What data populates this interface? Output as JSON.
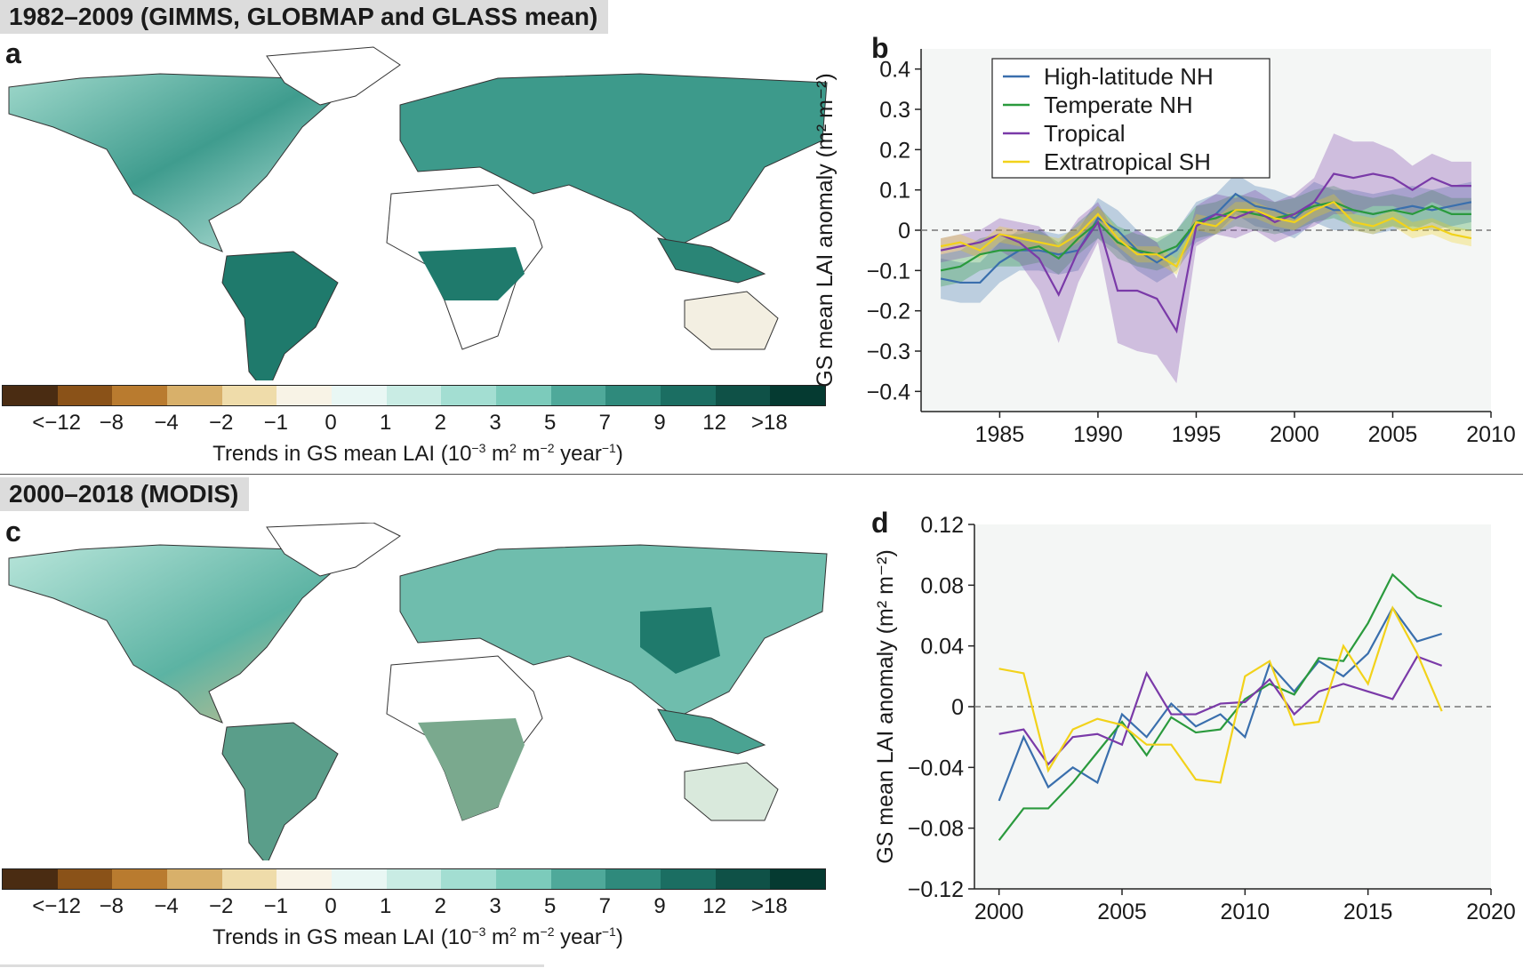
{
  "sections": {
    "top_title": "1982–2009 (GIMMS, GLOBMAP and GLASS mean)",
    "bottom_title": "2000–2018 (MODIS)"
  },
  "panels": {
    "a": "a",
    "b": "b",
    "c": "c",
    "d": "d"
  },
  "colorbar": {
    "colors": [
      "#4a2c12",
      "#8a5218",
      "#b97b2f",
      "#d8b06a",
      "#efdcaa",
      "#f8f3e6",
      "#e9f7f4",
      "#c9ece4",
      "#a3ded2",
      "#7ccbbb",
      "#4fa99a",
      "#2f8a7c",
      "#1b6e62",
      "#0f5147",
      "#053a31"
    ],
    "ticks": [
      "<−12",
      "−8",
      "−4",
      "−2",
      "−1",
      "0",
      "1",
      "2",
      "3",
      "5",
      "7",
      "9",
      "12",
      ">18"
    ],
    "label_prefix": "Trends in GS mean LAI (10",
    "label_exp1": "−3",
    "label_mid1": " m",
    "label_exp2": "2",
    "label_mid2": " m",
    "label_exp3": "−2",
    "label_mid3": " year",
    "label_exp4": "−1",
    "label_suffix": ")"
  },
  "chart_data": [
    {
      "id": "b",
      "type": "line",
      "ylabel": "GS mean LAI anomaly (m² m⁻²)",
      "xlim": [
        1981,
        2010
      ],
      "ylim": [
        -0.45,
        0.45
      ],
      "xticks": [
        1985,
        1990,
        1995,
        2000,
        2005,
        2010
      ],
      "yticks": [
        0.4,
        0.3,
        0.2,
        0.1,
        0,
        -0.1,
        -0.2,
        -0.3,
        -0.4
      ],
      "ytick_labels": [
        "0.4",
        "0.3",
        "0.2",
        "0.1",
        "0",
        "−0.1",
        "−0.2",
        "−0.3",
        "−0.4"
      ],
      "zero_line": "dashed",
      "legend": "top-left",
      "x": [
        1982,
        1983,
        1984,
        1985,
        1986,
        1987,
        1988,
        1989,
        1990,
        1991,
        1992,
        1993,
        1994,
        1995,
        1996,
        1997,
        1998,
        1999,
        2000,
        2001,
        2002,
        2003,
        2004,
        2005,
        2006,
        2007,
        2008,
        2009
      ],
      "series": [
        {
          "name": "High-latitude NH",
          "color": "#3a6fad",
          "values": [
            -0.12,
            -0.13,
            -0.13,
            -0.08,
            -0.05,
            -0.05,
            -0.06,
            -0.05,
            0.03,
            0.0,
            -0.05,
            -0.08,
            -0.05,
            0.02,
            0.04,
            0.09,
            0.06,
            0.05,
            0.03,
            0.07,
            0.05,
            0.05,
            0.04,
            0.05,
            0.06,
            0.05,
            0.06,
            0.07
          ],
          "band": [
            0.05,
            0.05,
            0.05,
            0.05,
            0.05,
            0.05,
            0.05,
            0.05,
            0.05,
            0.05,
            0.05,
            0.05,
            0.05,
            0.05,
            0.05,
            0.05,
            0.05,
            0.05,
            0.05,
            0.05,
            0.05,
            0.05,
            0.05,
            0.05,
            0.05,
            0.05,
            0.05,
            0.05
          ]
        },
        {
          "name": "Temperate NH",
          "color": "#2a9a3d",
          "values": [
            -0.1,
            -0.09,
            -0.06,
            -0.05,
            -0.05,
            -0.04,
            -0.07,
            -0.02,
            0.02,
            -0.03,
            -0.05,
            -0.06,
            -0.04,
            0.02,
            0.03,
            0.05,
            0.04,
            0.03,
            0.04,
            0.06,
            0.07,
            0.05,
            0.04,
            0.05,
            0.04,
            0.06,
            0.04,
            0.04
          ],
          "band": [
            0.04,
            0.04,
            0.04,
            0.04,
            0.04,
            0.04,
            0.04,
            0.04,
            0.04,
            0.04,
            0.04,
            0.04,
            0.04,
            0.04,
            0.04,
            0.04,
            0.04,
            0.04,
            0.04,
            0.04,
            0.04,
            0.04,
            0.04,
            0.04,
            0.04,
            0.04,
            0.04,
            0.04
          ]
        },
        {
          "name": "Tropical",
          "color": "#7a3aa8",
          "values": [
            -0.05,
            -0.04,
            -0.03,
            -0.01,
            -0.03,
            -0.07,
            -0.16,
            -0.05,
            0.02,
            -0.15,
            -0.15,
            -0.17,
            -0.25,
            0.01,
            0.04,
            0.03,
            0.05,
            0.02,
            0.04,
            0.07,
            0.14,
            0.13,
            0.14,
            0.13,
            0.1,
            0.13,
            0.11,
            0.11
          ],
          "band": [
            0.03,
            0.03,
            0.03,
            0.04,
            0.05,
            0.08,
            0.12,
            0.08,
            0.05,
            0.13,
            0.15,
            0.14,
            0.13,
            0.05,
            0.05,
            0.05,
            0.05,
            0.05,
            0.05,
            0.06,
            0.1,
            0.09,
            0.08,
            0.07,
            0.06,
            0.06,
            0.06,
            0.06
          ]
        },
        {
          "name": "Extratropical SH",
          "color": "#f2d21a",
          "values": [
            -0.04,
            -0.03,
            -0.05,
            -0.01,
            -0.02,
            -0.03,
            -0.04,
            -0.01,
            0.04,
            -0.02,
            -0.06,
            -0.06,
            -0.09,
            0.02,
            0.01,
            0.05,
            0.05,
            0.03,
            0.02,
            0.05,
            0.07,
            0.02,
            0.01,
            0.03,
            0.0,
            0.01,
            -0.01,
            -0.02
          ],
          "band": [
            0.02,
            0.02,
            0.02,
            0.02,
            0.02,
            0.02,
            0.02,
            0.02,
            0.02,
            0.02,
            0.02,
            0.02,
            0.02,
            0.02,
            0.02,
            0.02,
            0.02,
            0.02,
            0.02,
            0.02,
            0.02,
            0.02,
            0.02,
            0.02,
            0.02,
            0.02,
            0.02,
            0.02
          ]
        }
      ]
    },
    {
      "id": "d",
      "type": "line",
      "ylabel": "GS mean LAI anomaly (m² m⁻²)",
      "xlim": [
        1999,
        2020
      ],
      "ylim": [
        -0.12,
        0.12
      ],
      "xticks": [
        2000,
        2005,
        2010,
        2015,
        2020
      ],
      "yticks": [
        0.12,
        0.08,
        0.04,
        0,
        -0.04,
        -0.08,
        -0.12
      ],
      "ytick_labels": [
        "0.12",
        "0.08",
        "0.04",
        "0",
        "−0.04",
        "−0.08",
        "−0.12"
      ],
      "zero_line": "dashed",
      "x": [
        2000,
        2001,
        2002,
        2003,
        2004,
        2005,
        2006,
        2007,
        2008,
        2009,
        2010,
        2011,
        2012,
        2013,
        2014,
        2015,
        2016,
        2017,
        2018
      ],
      "series": [
        {
          "color": "#3a6fad",
          "values": [
            -0.062,
            -0.02,
            -0.053,
            -0.04,
            -0.05,
            -0.005,
            -0.02,
            0.002,
            -0.013,
            -0.005,
            -0.02,
            0.028,
            0.01,
            0.03,
            0.02,
            0.035,
            0.065,
            0.043,
            0.048
          ]
        },
        {
          "color": "#2a9a3d",
          "values": [
            -0.088,
            -0.067,
            -0.067,
            -0.05,
            -0.03,
            -0.01,
            -0.032,
            -0.007,
            -0.017,
            -0.015,
            0.005,
            0.015,
            0.008,
            0.032,
            0.03,
            0.055,
            0.087,
            0.072,
            0.066
          ]
        },
        {
          "color": "#7a3aa8",
          "values": [
            -0.018,
            -0.015,
            -0.038,
            -0.02,
            -0.018,
            -0.025,
            0.022,
            -0.005,
            -0.005,
            0.002,
            0.003,
            0.018,
            -0.005,
            0.01,
            0.015,
            0.01,
            0.005,
            0.033,
            0.027
          ]
        },
        {
          "color": "#f2d21a",
          "values": [
            0.025,
            0.022,
            -0.042,
            -0.015,
            -0.008,
            -0.012,
            -0.025,
            -0.025,
            -0.048,
            -0.05,
            0.02,
            0.03,
            -0.012,
            -0.01,
            0.04,
            0.015,
            0.065,
            0.035,
            -0.003
          ]
        }
      ]
    }
  ]
}
